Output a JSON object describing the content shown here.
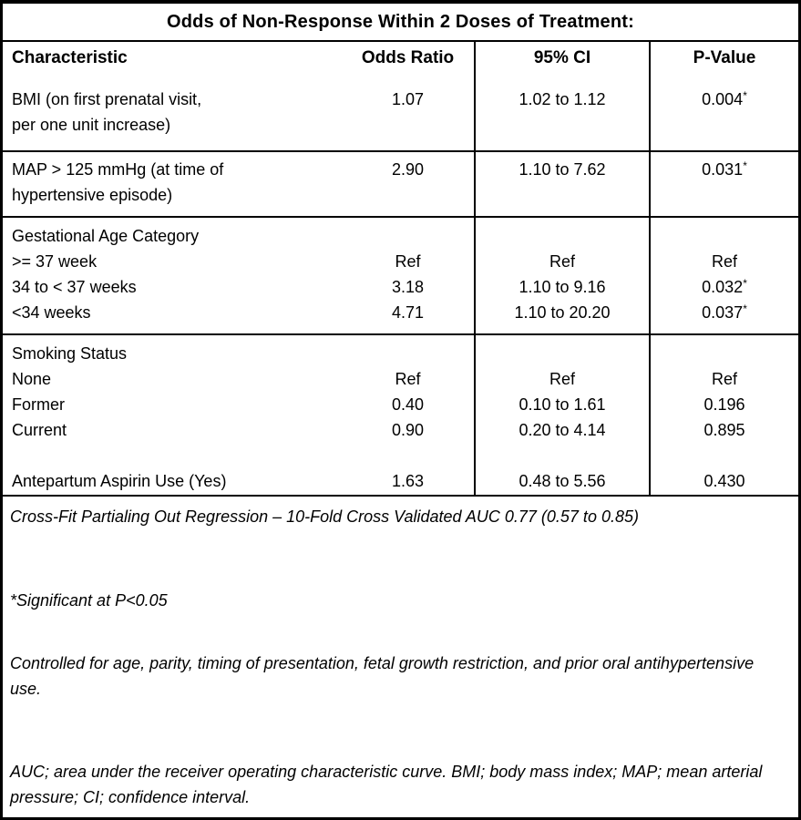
{
  "title": "Odds of Non-Response Within 2 Doses of Treatment:",
  "columns": [
    "Characteristic",
    "Odds Ratio",
    "95% CI",
    "P-Value"
  ],
  "table": {
    "sections": [
      {
        "name": "bmi",
        "characteristic": [
          "BMI (on first prenatal visit,",
          "per one unit increase)"
        ],
        "odds_ratio": [
          "1.07"
        ],
        "ci": [
          "1.02 to 1.12"
        ],
        "p_value": [
          "0.004*"
        ]
      },
      {
        "name": "map",
        "characteristic": [
          "MAP > 125 mmHg (at time of",
          "hypertensive episode)"
        ],
        "odds_ratio": [
          "2.90"
        ],
        "ci": [
          "1.10 to 7.62"
        ],
        "p_value": [
          "0.031*"
        ]
      },
      {
        "name": "gestational-age",
        "characteristic": [
          "Gestational Age Category",
          ">= 37 week",
          "34 to < 37 weeks",
          "<34 weeks"
        ],
        "odds_ratio": [
          "",
          "Ref",
          "3.18",
          "4.71"
        ],
        "ci": [
          "",
          "Ref",
          "1.10 to 9.16",
          "1.10 to 20.20"
        ],
        "p_value": [
          "",
          "Ref",
          "0.032*",
          "0.037*"
        ]
      },
      {
        "name": "smoking-aspirin",
        "characteristic": [
          "Smoking Status",
          "None",
          "Former",
          "Current",
          "",
          "Antepartum Aspirin Use (Yes)"
        ],
        "odds_ratio": [
          "",
          "Ref",
          "0.40",
          "0.90",
          "",
          "1.63"
        ],
        "ci": [
          "",
          "Ref",
          "0.10 to 1.61",
          "0.20 to 4.14",
          "",
          "0.48 to 5.56"
        ],
        "p_value": [
          "",
          "Ref",
          "0.196",
          "0.895",
          "",
          "0.430"
        ]
      }
    ]
  },
  "notes": [
    "Cross-Fit Partialing Out Regression – 10-Fold Cross Validated AUC 0.77 (0.57 to 0.85)",
    "*Significant at P<0.05",
    "Controlled for age, parity, timing of presentation, fetal growth restriction, and prior oral antihypertensive use.",
    "AUC; area under the receiver operating characteristic curve. BMI; body mass index; MAP; mean arterial pressure; CI; confidence interval."
  ],
  "colors": {
    "text": "#000000",
    "border": "#000000",
    "background": "#ffffff"
  }
}
